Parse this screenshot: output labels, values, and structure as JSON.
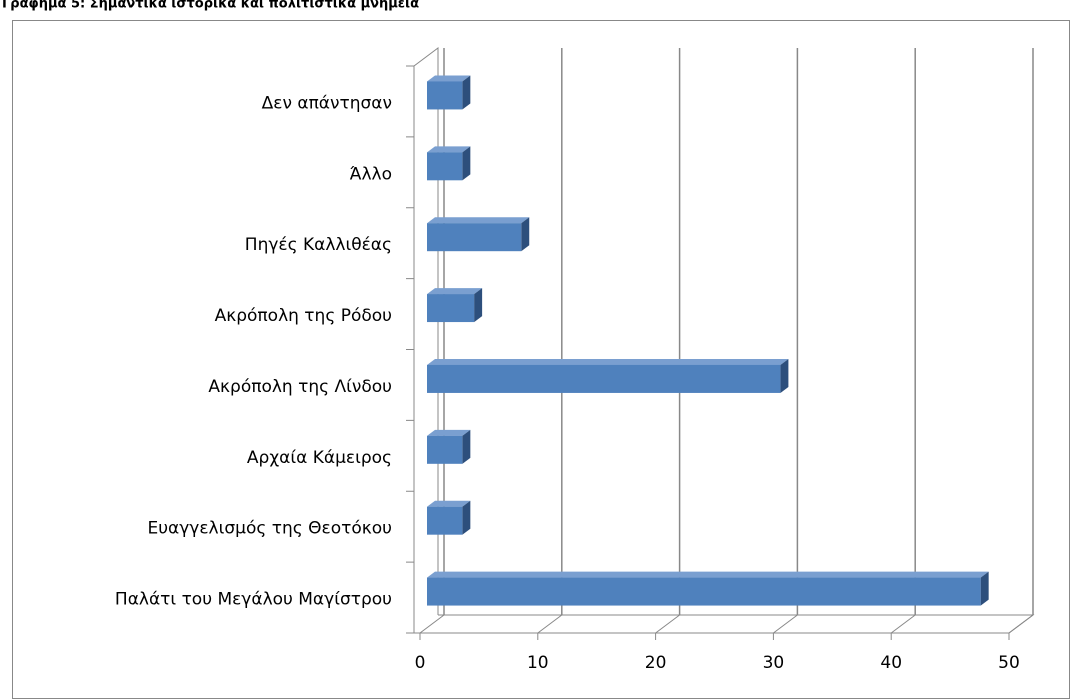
{
  "chart_data": {
    "type": "bar",
    "orientation": "horizontal",
    "title": "Γράφημα 5: Σημαντικά ιστορικά και πολιτιστικά μνημεία",
    "categories": [
      "Παλάτι του Μεγάλου Μαγίστρου",
      "Ευαγγελισμός της Θεοτόκου",
      "Αρχαία Κάμειρος",
      "Ακρόπολη της Λίνδου",
      "Ακρόπολη της Ρόδου",
      "Πηγές Καλλιθέας",
      "Άλλο",
      "Δεν απάντησαν"
    ],
    "values": [
      47,
      3,
      3,
      30,
      4,
      8,
      3,
      3
    ],
    "color": "#4f81bd",
    "xlim": [
      0,
      50
    ],
    "xticks": [
      0,
      10,
      20,
      30,
      40,
      50
    ],
    "grid": true
  }
}
